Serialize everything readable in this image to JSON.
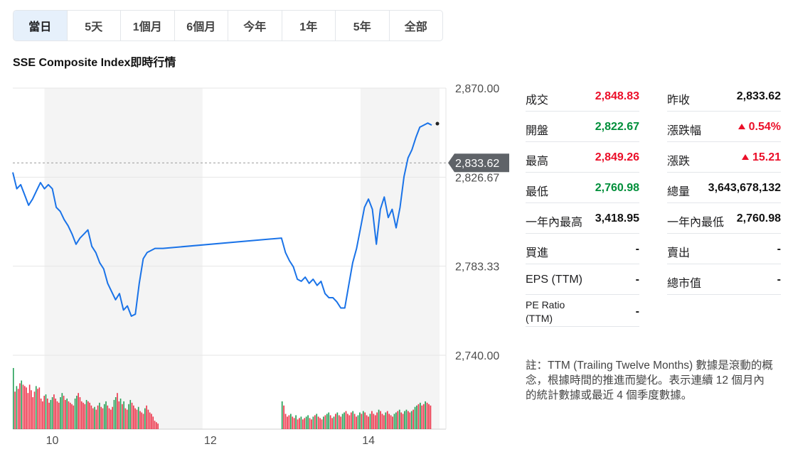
{
  "tabs": [
    {
      "label": "當日",
      "active": true
    },
    {
      "label": "5天",
      "active": false
    },
    {
      "label": "1個月",
      "active": false
    },
    {
      "label": "6個月",
      "active": false
    },
    {
      "label": "今年",
      "active": false
    },
    {
      "label": "1年",
      "active": false
    },
    {
      "label": "5年",
      "active": false
    },
    {
      "label": "全部",
      "active": false
    }
  ],
  "title": "SSE Composite Index即時行情",
  "chart_data": {
    "type": "line",
    "ylim": [
      2740,
      2870
    ],
    "y_ticks": [
      "2,870.00",
      "2,826.67",
      "2,783.33",
      "2,740.00"
    ],
    "y_tick_values": [
      2870,
      2826.67,
      2783.33,
      2740
    ],
    "x_ticks": [
      "10",
      "12",
      "14"
    ],
    "x_tick_values": [
      10,
      12,
      14
    ],
    "reference_line": {
      "value": 2833.62,
      "label": "2,833.62"
    },
    "shaded_periods": [
      [
        9.9,
        11.9
      ],
      [
        13.9,
        14.9
      ]
    ],
    "series": [
      {
        "color": "#1a73e8",
        "x": [
          9.5,
          9.55,
          9.6,
          9.65,
          9.7,
          9.75,
          9.8,
          9.85,
          9.9,
          9.95,
          10.0,
          10.05,
          10.1,
          10.15,
          10.2,
          10.25,
          10.3,
          10.35,
          10.4,
          10.45,
          10.5,
          10.55,
          10.6,
          10.65,
          10.7,
          10.75,
          10.8,
          10.85,
          10.9,
          10.95,
          11.0,
          11.05,
          11.1,
          11.15,
          11.2,
          11.25,
          11.3,
          11.35,
          11.4,
          12.9,
          12.95,
          13.0,
          13.05,
          13.1,
          13.15,
          13.2,
          13.25,
          13.3,
          13.35,
          13.4,
          13.45,
          13.5,
          13.55,
          13.6,
          13.65,
          13.7,
          13.75,
          13.8,
          13.85,
          13.9,
          13.95,
          14.0,
          14.05,
          14.1,
          14.15,
          14.2,
          14.25,
          14.3,
          14.35,
          14.4,
          14.45,
          14.5,
          14.55,
          14.6,
          14.65,
          14.7,
          14.75,
          14.8
        ],
        "y": [
          2829,
          2821,
          2823,
          2818,
          2813,
          2816,
          2820,
          2824,
          2821,
          2823,
          2821,
          2812,
          2810,
          2806,
          2803,
          2799,
          2794,
          2797,
          2799,
          2801,
          2793,
          2790,
          2785,
          2782,
          2775,
          2771,
          2767,
          2770,
          2762,
          2764,
          2759,
          2760,
          2775,
          2787,
          2790,
          2791,
          2792,
          2792,
          2792,
          2797,
          2790,
          2786,
          2783,
          2777,
          2776,
          2778,
          2775,
          2777,
          2774,
          2776,
          2770,
          2768,
          2768,
          2766,
          2763,
          2763,
          2774,
          2785,
          2792,
          2802,
          2812,
          2816,
          2811,
          2794,
          2811,
          2817,
          2807,
          2811,
          2802,
          2812,
          2827,
          2836,
          2840,
          2846,
          2851,
          2852,
          2853,
          2852
        ]
      }
    ],
    "volume": {
      "segments": [
        {
          "x0": 9.5,
          "x1": 11.35,
          "bars": [
            88,
            54,
            62,
            58,
            66,
            70,
            64,
            62,
            60,
            52,
            64,
            56,
            46,
            54,
            62,
            58,
            60,
            44,
            40,
            48,
            50,
            44,
            38,
            42,
            46,
            50,
            44,
            40,
            38,
            46,
            52,
            48,
            42,
            44,
            40,
            38,
            36,
            34,
            44,
            48,
            52,
            46,
            40,
            38,
            36,
            42,
            40,
            38,
            34,
            30,
            32,
            28,
            34,
            38,
            32,
            30,
            36,
            40,
            34,
            30,
            28,
            32,
            42,
            46,
            52,
            40,
            44,
            36,
            40,
            30,
            28,
            36,
            42,
            38,
            34,
            30,
            28,
            32,
            26,
            24,
            22,
            30,
            34,
            28,
            24,
            22,
            18,
            12,
            10,
            8
          ]
        },
        {
          "x0": 12.9,
          "x1": 14.8,
          "bars": [
            40,
            34,
            22,
            18,
            20,
            22,
            18,
            16,
            20,
            14,
            16,
            18,
            14,
            16,
            18,
            20,
            16,
            14,
            18,
            20,
            22,
            18,
            16,
            14,
            18,
            20,
            22,
            24,
            20,
            16,
            18,
            22,
            24,
            20,
            18,
            22,
            24,
            26,
            22,
            20,
            24,
            26,
            22,
            18,
            20,
            24,
            22,
            26,
            24,
            20,
            18,
            22,
            26,
            22,
            20,
            24,
            28,
            26,
            22,
            20,
            24,
            26,
            22,
            20,
            18,
            22,
            24,
            26,
            28,
            24,
            22,
            26,
            28,
            26,
            24,
            26,
            28,
            32,
            34,
            36,
            38,
            34,
            36,
            40,
            38,
            36,
            34
          ]
        }
      ]
    }
  },
  "stats_left": [
    {
      "label": "成交",
      "value": "2,848.83",
      "tone": "up"
    },
    {
      "label": "開盤",
      "value": "2,822.67",
      "tone": "down"
    },
    {
      "label": "最高",
      "value": "2,849.26",
      "tone": "up"
    },
    {
      "label": "最低",
      "value": "2,760.98",
      "tone": "down"
    },
    {
      "label": "一年內最高",
      "value": "3,418.95",
      "tone": "neutral"
    },
    {
      "label": "買進",
      "value": "-",
      "tone": "neutral"
    },
    {
      "label": "EPS (TTM)",
      "value": "-",
      "tone": "neutral"
    },
    {
      "label": "PE Ratio (TTM)",
      "value": "-",
      "tone": "neutral"
    }
  ],
  "stats_right": [
    {
      "label": "昨收",
      "value": "2,833.62",
      "tone": "neutral"
    },
    {
      "label": "漲跌幅",
      "value": "0.54%",
      "tone": "up",
      "arrow": "up"
    },
    {
      "label": "漲跌",
      "value": "15.21",
      "tone": "up",
      "arrow": "up"
    },
    {
      "label": "總量",
      "value": "3,643,678,132",
      "tone": "neutral"
    },
    {
      "label": "一年內最低",
      "value": "2,760.98",
      "tone": "neutral"
    },
    {
      "label": "賣出",
      "value": "-",
      "tone": "neutral"
    },
    {
      "label": "總市值",
      "value": "-",
      "tone": "neutral"
    }
  ],
  "note": "註：TTM (Trailing Twelve Months) 數據是滾動的概念，根據時間的推進而變化。表示連續 12 個月內的統計數據或最近 4 個季度數據。",
  "colors": {
    "up": "#eb0f29",
    "down": "#008f3a",
    "line": "#1a73e8",
    "shade": "#f4f4f4"
  }
}
